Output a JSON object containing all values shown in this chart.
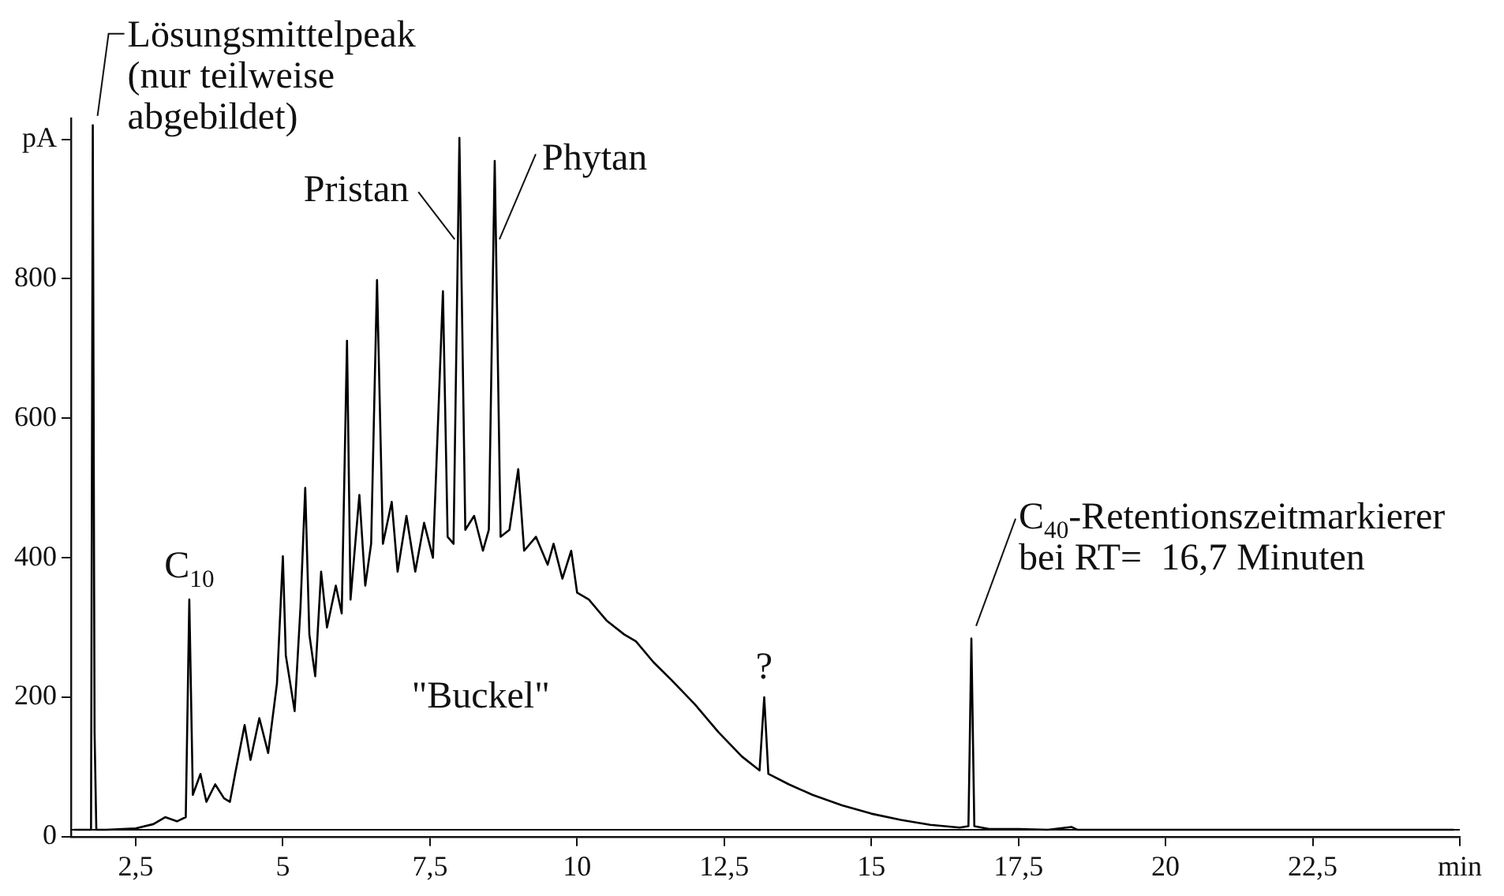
{
  "chart_data": {
    "type": "line",
    "x": [
      1.45,
      1.74,
      1.77,
      1.8,
      1.83,
      2.0,
      2.5,
      2.8,
      3.0,
      3.2,
      3.35,
      3.41,
      3.47,
      3.6,
      3.7,
      3.85,
      4.0,
      4.1,
      4.2,
      4.35,
      4.45,
      4.6,
      4.75,
      4.9,
      5.0,
      5.05,
      5.2,
      5.3,
      5.38,
      5.45,
      5.55,
      5.65,
      5.75,
      5.9,
      6.0,
      6.09,
      6.15,
      6.3,
      6.4,
      6.5,
      6.6,
      6.7,
      6.85,
      6.95,
      7.1,
      7.25,
      7.4,
      7.55,
      7.72,
      7.8,
      7.9,
      8.0,
      8.1,
      8.25,
      8.4,
      8.5,
      8.6,
      8.7,
      8.85,
      9.0,
      9.1,
      9.3,
      9.5,
      9.6,
      9.75,
      9.9,
      10.0,
      10.2,
      10.5,
      10.8,
      11.0,
      11.3,
      11.6,
      12.0,
      12.4,
      12.8,
      13.1,
      13.18,
      13.25,
      13.6,
      14.0,
      14.5,
      15.0,
      15.5,
      16.0,
      16.5,
      16.65,
      16.7,
      16.75,
      17.0,
      17.5,
      18.0,
      18.4,
      18.5,
      20,
      22.5,
      24.9
    ],
    "series": [
      {
        "color": "#000000",
        "values": [
          10,
          10,
          1020,
          150,
          10,
          10,
          12,
          18,
          28,
          22,
          28,
          340,
          60,
          90,
          50,
          75,
          55,
          50,
          95,
          160,
          110,
          170,
          120,
          220,
          402,
          260,
          180,
          330,
          500,
          290,
          230,
          380,
          300,
          360,
          320,
          711,
          340,
          490,
          360,
          420,
          798,
          420,
          480,
          380,
          460,
          380,
          450,
          400,
          782,
          430,
          420,
          1002,
          440,
          460,
          410,
          440,
          969,
          430,
          440,
          527,
          410,
          430,
          390,
          420,
          370,
          410,
          350,
          340,
          310,
          290,
          280,
          250,
          225,
          190,
          150,
          115,
          95,
          200,
          90,
          75,
          60,
          45,
          33,
          24,
          17,
          13,
          15,
          284,
          15,
          11,
          11,
          10,
          14,
          10,
          10,
          10,
          10
        ]
      }
    ],
    "xlim": [
      1.4,
      25
    ],
    "xticks": [
      {
        "value": 2.5,
        "label": "2,5"
      },
      5,
      {
        "value": 7.5,
        "label": "7,5"
      },
      10,
      {
        "value": 12.5,
        "label": "12,5"
      },
      15,
      {
        "value": 17.5,
        "label": "17,5"
      },
      20,
      {
        "value": 22.5,
        "label": "22,5"
      },
      {
        "value": 25,
        "label": "min"
      }
    ],
    "ylim": [
      0,
      1030
    ],
    "yticks": [
      0,
      200,
      400,
      600,
      800,
      {
        "value": 1000,
        "label": "pA"
      }
    ],
    "grid": false,
    "legend": false,
    "marker": "none",
    "line_style": "solid",
    "ref_lines": [
      {
        "axis": "y",
        "value": 10,
        "color": "#000000"
      }
    ],
    "annotations": [
      {
        "text": "Lösungsmittelpeak\n(nur teilweise\nabgebildet)",
        "x": 1.77,
        "y": 1020
      },
      {
        "text": "Pristan",
        "x": 8.0,
        "y": 870
      },
      {
        "text": "Phytan",
        "x": 8.6,
        "y": 870
      },
      {
        "text": "C$_{10}$",
        "x": 3.41,
        "y": 340
      },
      "\"Buckel\"",
      {
        "text": "?",
        "x": 13.18,
        "y": 200
      },
      {
        "text": "C$_{40}$-Retentionszeitmarkierer\nbei RT=  16,7 Minuten",
        "x": 16.7,
        "y": 284
      }
    ]
  }
}
